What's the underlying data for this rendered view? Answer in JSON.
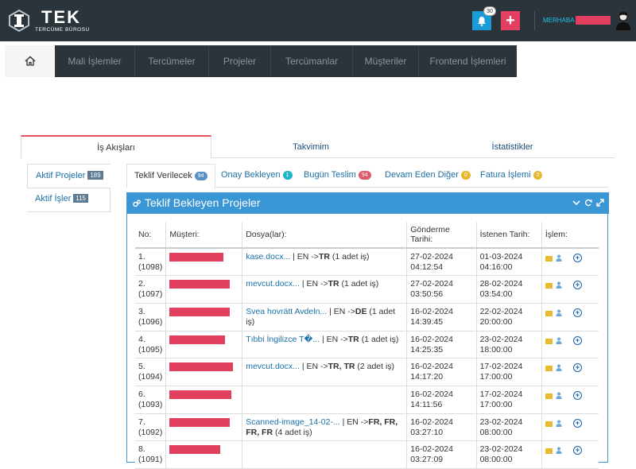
{
  "brand": {
    "name": "TEK",
    "subtitle": "TERCÜME BÜROSU"
  },
  "header": {
    "notifications_count": "30",
    "greeting": "MERHABA"
  },
  "nav": [
    {
      "label": "",
      "icon": "home-icon"
    },
    {
      "label": "Mali İşlemler"
    },
    {
      "label": "Tercümeler"
    },
    {
      "label": "Projeler"
    },
    {
      "label": "Tercümanlar"
    },
    {
      "label": "Müşteriler"
    },
    {
      "label": "Frontend İşlemleri"
    }
  ],
  "main_tabs": [
    {
      "label": "İş Akışları"
    },
    {
      "label": "Takvimim"
    },
    {
      "label": "İstatistikler"
    }
  ],
  "sidebar": [
    {
      "label": "Aktif Projeler",
      "count": "189"
    },
    {
      "label": "Aktif İşler",
      "count": "115"
    }
  ],
  "subtabs": [
    {
      "label": "Teklif Verilecek",
      "count": "94",
      "color": "#5b8fc7"
    },
    {
      "label": "Onay Bekleyen",
      "count": "1",
      "color": "#22b5c9"
    },
    {
      "label": "Bugün Teslim",
      "count": "94",
      "color": "#e05a6a"
    },
    {
      "label": "Devam Eden Diğer",
      "count": "0",
      "color": "#e6b82e"
    },
    {
      "label": "Fatura İşlemi",
      "count": "0",
      "color": "#e6b82e"
    }
  ],
  "panel": {
    "title": "Teklif Bekleyen Projeler"
  },
  "table": {
    "headers": [
      "No:",
      "Müşteri:",
      "Dosya(lar):",
      "Gönderme Tarihi:",
      "İstenen Tarih:",
      "İşlem:"
    ],
    "rows": [
      {
        "no": "1.",
        "id": "(1098)",
        "file": "kase.docx...",
        "lang": "| EN ->",
        "target": "TR",
        "count": "(1 adet iş)",
        "sent_date": "27-02-2024",
        "sent_time": "04:12:54",
        "due_date": "01-03-2024",
        "due_time": "04:16:00"
      },
      {
        "no": "2.",
        "id": "(1097)",
        "file": "mevcut.docx...",
        "lang": "| EN ->",
        "target": "TR",
        "count": "(1 adet iş)",
        "sent_date": "27-02-2024",
        "sent_time": "03:50:56",
        "due_date": "28-02-2024",
        "due_time": "03:54:00"
      },
      {
        "no": "3.",
        "id": "(1096)",
        "file": "Svea hovrätt Avdeln...",
        "lang": "| EN ->",
        "target": "DE",
        "count": "(1 adet iş)",
        "sent_date": "16-02-2024",
        "sent_time": "14:39:45",
        "due_date": "22-02-2024",
        "due_time": "20:00:00"
      },
      {
        "no": "4.",
        "id": "(1095)",
        "file": "Tıbbi İngilizce T�...",
        "lang": "| EN ->",
        "target": "TR",
        "count": "(1 adet iş)",
        "sent_date": "16-02-2024",
        "sent_time": "14:25:35",
        "due_date": "23-02-2024",
        "due_time": "18:00:00"
      },
      {
        "no": "5.",
        "id": "(1094)",
        "file": "mevcut.docx...",
        "lang": "| EN ->",
        "target": "TR, TR",
        "count": "(2 adet iş)",
        "sent_date": "16-02-2024",
        "sent_time": "14:17:20",
        "due_date": "17-02-2024",
        "due_time": "17:00:00"
      },
      {
        "no": "6.",
        "id": "(1093)",
        "file": "",
        "lang": "",
        "target": "",
        "count": "",
        "sent_date": "16-02-2024",
        "sent_time": "14:11:56",
        "due_date": "17-02-2024",
        "due_time": "17:00:00"
      },
      {
        "no": "7.",
        "id": "(1092)",
        "file": "Scanned-image_14-02-...",
        "lang": "| EN ->",
        "target": "FR, FR, FR, FR",
        "count": "(4 adet iş)",
        "sent_date": "16-02-2024",
        "sent_time": "03:27:10",
        "due_date": "23-02-2024",
        "due_time": "08:00:00"
      },
      {
        "no": "8.",
        "id": "(1091)",
        "file": "",
        "lang": "",
        "target": "",
        "count": "",
        "sent_date": "16-02-2024",
        "sent_time": "03:27:09",
        "due_date": "23-02-2024",
        "due_time": "08:00:00"
      }
    ]
  }
}
